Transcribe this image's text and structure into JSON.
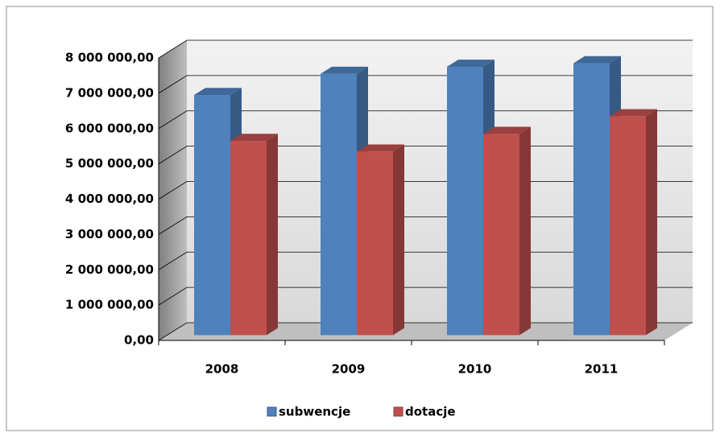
{
  "chart_data": {
    "type": "bar3d",
    "categories": [
      "2008",
      "2009",
      "2010",
      "2011"
    ],
    "series": [
      {
        "name": "subwencje",
        "color": "#4f81bd",
        "values": [
          6800000,
          7400000,
          7600000,
          7700000
        ]
      },
      {
        "name": "dotacje",
        "color": "#c0504d",
        "values": [
          5500000,
          5200000,
          5700000,
          6200000
        ]
      }
    ],
    "ylim": [
      0,
      8000000
    ],
    "yticks": [
      {
        "value": 0,
        "label": "0,00"
      },
      {
        "value": 1000000,
        "label": "1 000 000,00"
      },
      {
        "value": 2000000,
        "label": "2 000 000,00"
      },
      {
        "value": 3000000,
        "label": "3 000 000,00"
      },
      {
        "value": 4000000,
        "label": "4 000 000,00"
      },
      {
        "value": 5000000,
        "label": "5 000 000,00"
      },
      {
        "value": 6000000,
        "label": "6 000 000,00"
      },
      {
        "value": 7000000,
        "label": "7 000 000,00"
      },
      {
        "value": 8000000,
        "label": "8 000 000,00"
      }
    ],
    "grid": true,
    "legend": "bottom"
  }
}
